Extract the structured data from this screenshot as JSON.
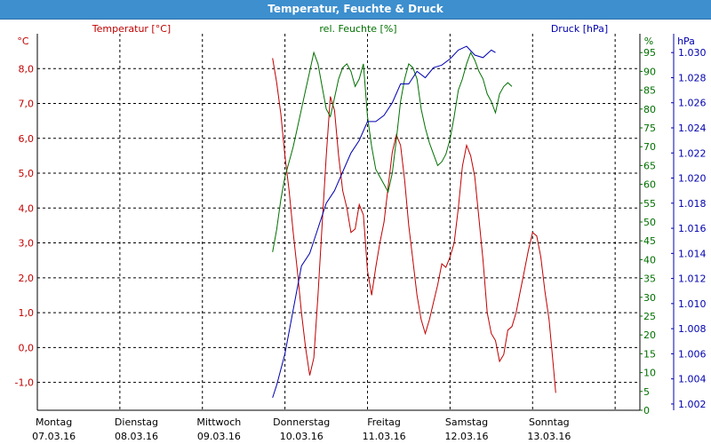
{
  "window": {
    "title": "Temperatur, Feuchte & Druck"
  },
  "colors": {
    "titlebar": "#3d8fce",
    "temperature": "#c00000",
    "humidity": "#007000",
    "pressure": "#0000b0",
    "grid": "#000000"
  },
  "chart_data": {
    "type": "line",
    "title": "Temperatur, Feuchte & Druck",
    "x_range": [
      0,
      7.3
    ],
    "x_ticks": [
      {
        "day": "Montag",
        "date": "07.03.16"
      },
      {
        "day": "Dienstag",
        "date": "08.03.16"
      },
      {
        "day": "Mittwoch",
        "date": "09.03.16"
      },
      {
        "day": "Donnerstag",
        "date": "10.03.16"
      },
      {
        "day": "Freitag",
        "date": "11.03.16"
      },
      {
        "day": "Samstag",
        "date": "12.03.16"
      },
      {
        "day": "Sonntag",
        "date": "13.03.16"
      }
    ],
    "grid": true,
    "axes": {
      "temperature": {
        "unit": "°C",
        "range": [
          -1.8,
          9.0
        ],
        "ticks": [
          "8,0",
          "7,0",
          "6,0",
          "5,0",
          "4,0",
          "3,0",
          "2,0",
          "1,0",
          "0,0",
          "-1,0"
        ],
        "tick_values": [
          8,
          7,
          6,
          5,
          4,
          3,
          2,
          1,
          0,
          -1
        ]
      },
      "humidity": {
        "unit": "%",
        "range": [
          0,
          100
        ],
        "ticks": [
          "95",
          "90",
          "85",
          "80",
          "75",
          "70",
          "65",
          "60",
          "55",
          "50",
          "45",
          "40",
          "35",
          "30",
          "25",
          "20",
          "15",
          "10",
          "5",
          "0"
        ],
        "tick_values": [
          95,
          90,
          85,
          80,
          75,
          70,
          65,
          60,
          55,
          50,
          45,
          40,
          35,
          30,
          25,
          20,
          15,
          10,
          5,
          0
        ]
      },
      "pressure": {
        "unit": "hPa",
        "range": [
          1.0015,
          1.0315
        ],
        "ticks": [
          "1.030",
          "1.028",
          "1.026",
          "1.024",
          "1.022",
          "1.020",
          "1.018",
          "1.016",
          "1.014",
          "1.012",
          "1.010",
          "1.008",
          "1.006",
          "1.004",
          "1.002"
        ],
        "tick_values": [
          1.03,
          1.028,
          1.026,
          1.024,
          1.022,
          1.02,
          1.018,
          1.016,
          1.014,
          1.012,
          1.01,
          1.008,
          1.006,
          1.004,
          1.002
        ]
      }
    },
    "series": [
      {
        "name": "Temperatur [°C]",
        "axis": "temperature",
        "color": "#c00000",
        "points": [
          [
            2.85,
            8.3
          ],
          [
            2.9,
            7.6
          ],
          [
            2.95,
            6.7
          ],
          [
            3.0,
            5.5
          ],
          [
            3.05,
            4.5
          ],
          [
            3.1,
            3.3
          ],
          [
            3.15,
            2.2
          ],
          [
            3.2,
            1.0
          ],
          [
            3.25,
            0.0
          ],
          [
            3.3,
            -0.8
          ],
          [
            3.35,
            -0.3
          ],
          [
            3.4,
            1.5
          ],
          [
            3.45,
            3.5
          ],
          [
            3.5,
            5.5
          ],
          [
            3.55,
            7.2
          ],
          [
            3.6,
            6.8
          ],
          [
            3.65,
            5.5
          ],
          [
            3.7,
            4.5
          ],
          [
            3.75,
            4.0
          ],
          [
            3.8,
            3.3
          ],
          [
            3.85,
            3.4
          ],
          [
            3.9,
            4.1
          ],
          [
            3.95,
            3.8
          ],
          [
            4.0,
            2.2
          ],
          [
            4.05,
            1.5
          ],
          [
            4.1,
            2.3
          ],
          [
            4.15,
            3.0
          ],
          [
            4.2,
            3.6
          ],
          [
            4.25,
            4.6
          ],
          [
            4.3,
            5.6
          ],
          [
            4.35,
            6.1
          ],
          [
            4.4,
            5.8
          ],
          [
            4.45,
            4.8
          ],
          [
            4.5,
            3.5
          ],
          [
            4.55,
            2.5
          ],
          [
            4.6,
            1.5
          ],
          [
            4.65,
            0.8
          ],
          [
            4.7,
            0.4
          ],
          [
            4.75,
            0.8
          ],
          [
            4.8,
            1.3
          ],
          [
            4.85,
            1.8
          ],
          [
            4.9,
            2.4
          ],
          [
            4.95,
            2.3
          ],
          [
            5.0,
            2.6
          ],
          [
            5.05,
            3.0
          ],
          [
            5.1,
            4.0
          ],
          [
            5.15,
            5.2
          ],
          [
            5.2,
            5.8
          ],
          [
            5.25,
            5.5
          ],
          [
            5.3,
            4.9
          ],
          [
            5.35,
            3.7
          ],
          [
            5.4,
            2.5
          ],
          [
            5.45,
            1.0
          ],
          [
            5.5,
            0.4
          ],
          [
            5.55,
            0.2
          ],
          [
            5.6,
            -0.4
          ],
          [
            5.65,
            -0.2
          ],
          [
            5.7,
            0.5
          ],
          [
            5.75,
            0.6
          ],
          [
            5.8,
            1.0
          ],
          [
            5.85,
            1.6
          ],
          [
            5.9,
            2.2
          ],
          [
            5.95,
            2.8
          ],
          [
            6.0,
            3.3
          ],
          [
            6.05,
            3.2
          ],
          [
            6.1,
            2.6
          ],
          [
            6.15,
            1.6
          ],
          [
            6.2,
            0.8
          ],
          [
            6.25,
            -0.5
          ],
          [
            6.28,
            -1.3
          ]
        ]
      },
      {
        "name": "rel. Feuchte [%]",
        "axis": "humidity",
        "color": "#007000",
        "points": [
          [
            2.85,
            42
          ],
          [
            2.9,
            48
          ],
          [
            2.95,
            56
          ],
          [
            3.0,
            62
          ],
          [
            3.05,
            66
          ],
          [
            3.1,
            70
          ],
          [
            3.15,
            75
          ],
          [
            3.2,
            80
          ],
          [
            3.25,
            85
          ],
          [
            3.3,
            90
          ],
          [
            3.35,
            95
          ],
          [
            3.4,
            92
          ],
          [
            3.45,
            86
          ],
          [
            3.5,
            80
          ],
          [
            3.55,
            78
          ],
          [
            3.6,
            83
          ],
          [
            3.65,
            88
          ],
          [
            3.7,
            91
          ],
          [
            3.75,
            92
          ],
          [
            3.8,
            90
          ],
          [
            3.85,
            86
          ],
          [
            3.9,
            88
          ],
          [
            3.95,
            92
          ],
          [
            4.0,
            78
          ],
          [
            4.05,
            70
          ],
          [
            4.1,
            64
          ],
          [
            4.15,
            62
          ],
          [
            4.2,
            60
          ],
          [
            4.25,
            58
          ],
          [
            4.3,
            63
          ],
          [
            4.35,
            72
          ],
          [
            4.4,
            82
          ],
          [
            4.45,
            88
          ],
          [
            4.5,
            92
          ],
          [
            4.55,
            91
          ],
          [
            4.6,
            88
          ],
          [
            4.65,
            80
          ],
          [
            4.7,
            75
          ],
          [
            4.75,
            71
          ],
          [
            4.8,
            68
          ],
          [
            4.85,
            65
          ],
          [
            4.9,
            66
          ],
          [
            4.95,
            68
          ],
          [
            5.0,
            72
          ],
          [
            5.05,
            78
          ],
          [
            5.1,
            85
          ],
          [
            5.15,
            88
          ],
          [
            5.2,
            92
          ],
          [
            5.25,
            95
          ],
          [
            5.3,
            93
          ],
          [
            5.35,
            90
          ],
          [
            5.4,
            88
          ],
          [
            5.45,
            84
          ],
          [
            5.5,
            82
          ],
          [
            5.55,
            79
          ],
          [
            5.6,
            84
          ],
          [
            5.65,
            86
          ],
          [
            5.7,
            87
          ],
          [
            5.75,
            86
          ]
        ]
      },
      {
        "name": "Druck [hPa]",
        "axis": "pressure",
        "color": "#0000b0",
        "points": [
          [
            2.85,
            1.0025
          ],
          [
            2.9,
            1.0035
          ],
          [
            3.0,
            1.006
          ],
          [
            3.1,
            1.0095
          ],
          [
            3.2,
            1.013
          ],
          [
            3.3,
            1.014
          ],
          [
            3.4,
            1.016
          ],
          [
            3.5,
            1.018
          ],
          [
            3.6,
            1.019
          ],
          [
            3.7,
            1.0205
          ],
          [
            3.8,
            1.022
          ],
          [
            3.9,
            1.023
          ],
          [
            4.0,
            1.0245
          ],
          [
            4.1,
            1.0245
          ],
          [
            4.2,
            1.025
          ],
          [
            4.3,
            1.026
          ],
          [
            4.4,
            1.0275
          ],
          [
            4.5,
            1.0275
          ],
          [
            4.6,
            1.0285
          ],
          [
            4.7,
            1.028
          ],
          [
            4.8,
            1.0288
          ],
          [
            4.9,
            1.029
          ],
          [
            5.0,
            1.0295
          ],
          [
            5.1,
            1.0302
          ],
          [
            5.2,
            1.0305
          ],
          [
            5.3,
            1.0298
          ],
          [
            5.4,
            1.0296
          ],
          [
            5.5,
            1.0302
          ],
          [
            5.55,
            1.03
          ]
        ]
      }
    ]
  }
}
